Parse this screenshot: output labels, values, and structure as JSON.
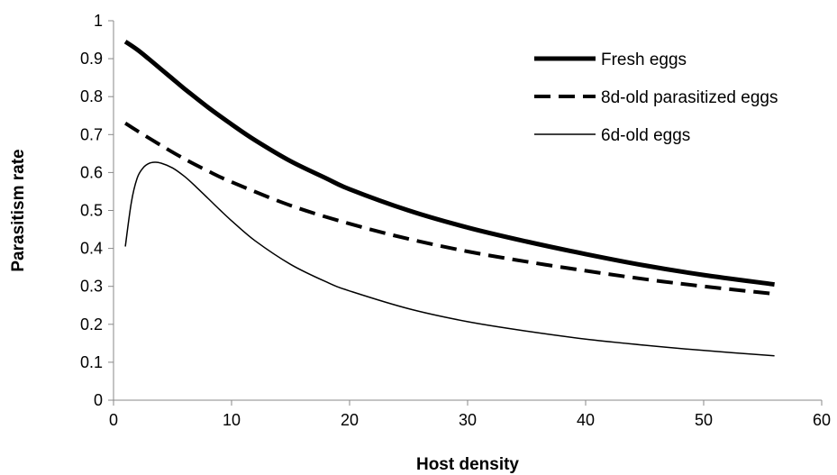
{
  "chart_data": {
    "type": "line",
    "title": "",
    "xlabel": "Host density",
    "ylabel": "Parasitism rate",
    "xlim": [
      0,
      60
    ],
    "ylim": [
      0,
      1
    ],
    "xticks": [
      0,
      10,
      20,
      30,
      40,
      50,
      60
    ],
    "yticks": [
      0,
      0.1,
      0.2,
      0.3,
      0.4,
      0.5,
      0.6,
      0.7,
      0.8,
      0.9,
      1
    ],
    "grid": false,
    "legend_position": "top-right",
    "series": [
      {
        "name": "Fresh eggs",
        "style": "thick-solid",
        "color": "#000000",
        "x": [
          1,
          2,
          3,
          4,
          5,
          6,
          8,
          10,
          12,
          15,
          18,
          20,
          25,
          30,
          35,
          40,
          45,
          50,
          56
        ],
        "y": [
          0.945,
          0.924,
          0.899,
          0.873,
          0.847,
          0.821,
          0.772,
          0.727,
          0.685,
          0.63,
          0.585,
          0.556,
          0.5,
          0.455,
          0.418,
          0.385,
          0.355,
          0.33,
          0.305
        ]
      },
      {
        "name": "8d-old parasitized eggs",
        "style": "thick-dashed",
        "color": "#000000",
        "x": [
          1,
          2,
          4,
          6,
          8,
          10,
          15,
          20,
          25,
          30,
          35,
          40,
          45,
          50,
          56
        ],
        "y": [
          0.73,
          0.71,
          0.672,
          0.636,
          0.604,
          0.575,
          0.513,
          0.465,
          0.425,
          0.392,
          0.365,
          0.341,
          0.319,
          0.3,
          0.28
        ]
      },
      {
        "name": "6d-old eggs",
        "style": "thin-solid",
        "color": "#000000",
        "x": [
          1,
          1.5,
          2,
          2.5,
          3,
          3.5,
          4,
          5,
          6,
          7,
          8,
          9,
          10,
          12,
          15,
          18,
          20,
          25,
          30,
          35,
          40,
          45,
          50,
          56
        ],
        "y": [
          0.405,
          0.52,
          0.585,
          0.612,
          0.624,
          0.627,
          0.625,
          0.612,
          0.59,
          0.562,
          0.532,
          0.502,
          0.473,
          0.42,
          0.358,
          0.312,
          0.288,
          0.241,
          0.207,
          0.182,
          0.161,
          0.145,
          0.131,
          0.117
        ]
      }
    ]
  }
}
